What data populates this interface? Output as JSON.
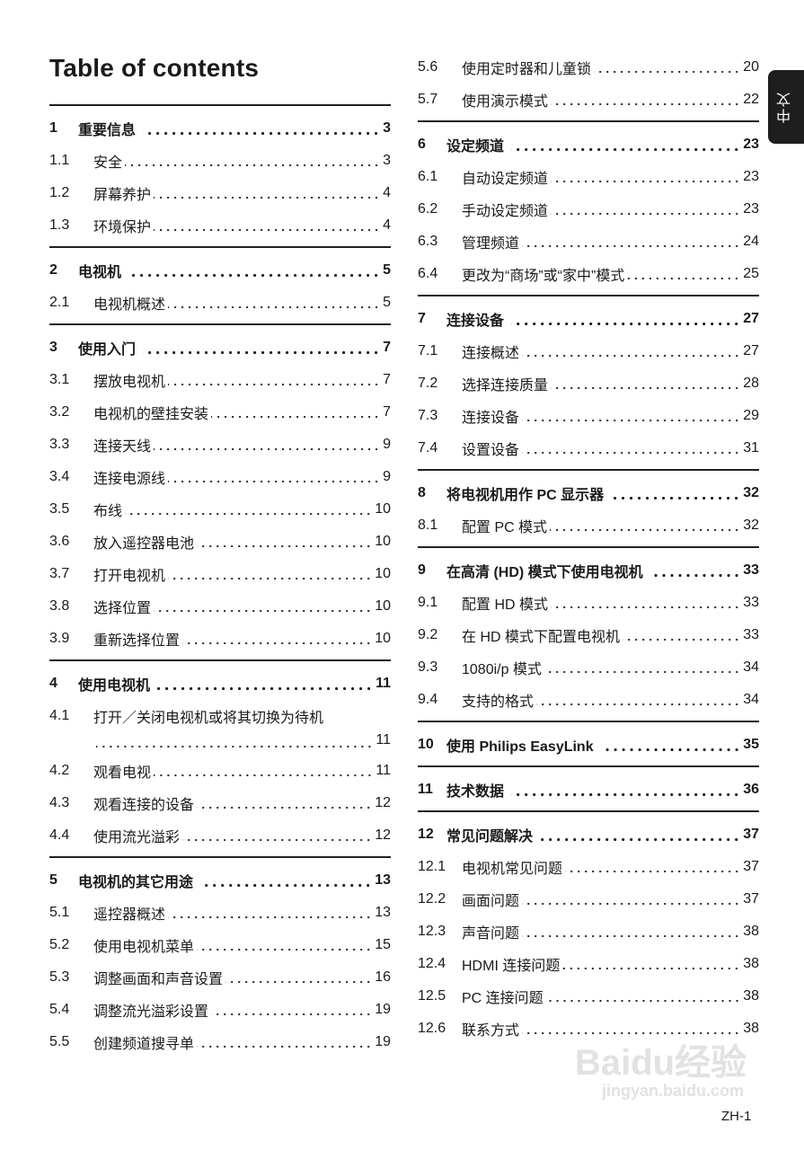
{
  "title": "Table of contents",
  "side_tab": "中文",
  "footer": "ZH-1",
  "watermark": {
    "logo": "Baidu经验",
    "url": "jingyan.baidu.com"
  },
  "columns": {
    "left": [
      {
        "head": {
          "num": "1",
          "text": "重要信息",
          "page": "3"
        },
        "items": [
          {
            "num": "1.1",
            "text": "安全",
            "page": "3"
          },
          {
            "num": "1.2",
            "text": "屏幕养护",
            "page": "4"
          },
          {
            "num": "1.3",
            "text": "环境保护",
            "page": "4"
          }
        ]
      },
      {
        "head": {
          "num": "2",
          "text": "电视机",
          "page": "5"
        },
        "items": [
          {
            "num": "2.1",
            "text": "电视机概述",
            "page": "5"
          }
        ]
      },
      {
        "head": {
          "num": "3",
          "text": "使用入门",
          "page": "7"
        },
        "items": [
          {
            "num": "3.1",
            "text": "摆放电视机",
            "page": "7"
          },
          {
            "num": "3.2",
            "text": "电视机的壁挂安装",
            "page": "7"
          },
          {
            "num": "3.3",
            "text": "连接天线",
            "page": "9"
          },
          {
            "num": "3.4",
            "text": "连接电源线",
            "page": "9"
          },
          {
            "num": "3.5",
            "text": "布线",
            "page": "10"
          },
          {
            "num": "3.6",
            "text": "放入遥控器电池",
            "page": "10"
          },
          {
            "num": "3.7",
            "text": "打开电视机",
            "page": "10"
          },
          {
            "num": "3.8",
            "text": "选择位置",
            "page": "10"
          },
          {
            "num": "3.9",
            "text": "重新选择位置",
            "page": "10"
          }
        ]
      },
      {
        "head": {
          "num": "4",
          "text": "使用电视机",
          "page": "11"
        },
        "items": [
          {
            "num": "4.1",
            "text": "打开／关闭电视机或将其切换为待机",
            "page": "11",
            "wrap": true
          },
          {
            "num": "4.2",
            "text": "观看电视",
            "page": "11"
          },
          {
            "num": "4.3",
            "text": "观看连接的设备",
            "page": "12"
          },
          {
            "num": "4.4",
            "text": "使用流光溢彩",
            "page": "12"
          }
        ]
      },
      {
        "head": {
          "num": "5",
          "text": "电视机的其它用途",
          "page": "13"
        },
        "items": [
          {
            "num": "5.1",
            "text": "遥控器概述",
            "page": "13"
          },
          {
            "num": "5.2",
            "text": "使用电视机菜单",
            "page": "15"
          },
          {
            "num": "5.3",
            "text": "调整画面和声音设置",
            "page": "16"
          },
          {
            "num": "5.4",
            "text": "调整流光溢彩设置",
            "page": "19"
          },
          {
            "num": "5.5",
            "text": "创建频道搜寻单",
            "page": "19"
          }
        ]
      }
    ],
    "right": [
      {
        "items": [
          {
            "num": "5.6",
            "text": "使用定时器和儿童锁",
            "page": "20"
          },
          {
            "num": "5.7",
            "text": "使用演示模式",
            "page": "22"
          }
        ]
      },
      {
        "head": {
          "num": "6",
          "text": "设定频道",
          "page": "23"
        },
        "items": [
          {
            "num": "6.1",
            "text": "自动设定频道",
            "page": "23"
          },
          {
            "num": "6.2",
            "text": "手动设定频道",
            "page": "23"
          },
          {
            "num": "6.3",
            "text": "管理频道",
            "page": "24"
          },
          {
            "num": "6.4",
            "text": "更改为“商场”或“家中”模式",
            "page": "25"
          }
        ]
      },
      {
        "head": {
          "num": "7",
          "text": "连接设备",
          "page": "27"
        },
        "items": [
          {
            "num": "7.1",
            "text": "连接概述",
            "page": "27"
          },
          {
            "num": "7.2",
            "text": "选择连接质量",
            "page": "28"
          },
          {
            "num": "7.3",
            "text": "连接设备",
            "page": "29"
          },
          {
            "num": "7.4",
            "text": "设置设备",
            "page": "31"
          }
        ]
      },
      {
        "head": {
          "num": "8",
          "text": "将电视机用作 PC 显示器",
          "page": "32"
        },
        "items": [
          {
            "num": "8.1",
            "text": "配置 PC 模式",
            "page": "32"
          }
        ]
      },
      {
        "head": {
          "num": "9",
          "text": "在高清 (HD) 模式下使用电视机",
          "page": "33"
        },
        "items": [
          {
            "num": "9.1",
            "text": "配置 HD 模式",
            "page": "33"
          },
          {
            "num": "9.2",
            "text": "在 HD 模式下配置电视机",
            "page": "33"
          },
          {
            "num": "9.3",
            "text": "1080i/p 模式",
            "page": "34"
          },
          {
            "num": "9.4",
            "text": "支持的格式",
            "page": "34"
          }
        ]
      },
      {
        "head": {
          "num": "10",
          "text": "使用 Philips EasyLink",
          "page": "35"
        },
        "items": []
      },
      {
        "head": {
          "num": "11",
          "text": "技术数据",
          "page": "36"
        },
        "items": []
      },
      {
        "head": {
          "num": "12",
          "text": "常见问题解决",
          "page": "37"
        },
        "items": [
          {
            "num": "12.1",
            "text": "电视机常见问题",
            "page": "37"
          },
          {
            "num": "12.2",
            "text": "画面问题",
            "page": "37"
          },
          {
            "num": "12.3",
            "text": "声音问题",
            "page": "38"
          },
          {
            "num": "12.4",
            "text": "HDMI 连接问题",
            "page": "38"
          },
          {
            "num": "12.5",
            "text": "PC 连接问题",
            "page": "38"
          },
          {
            "num": "12.6",
            "text": "联系方式",
            "page": "38"
          }
        ]
      }
    ]
  }
}
